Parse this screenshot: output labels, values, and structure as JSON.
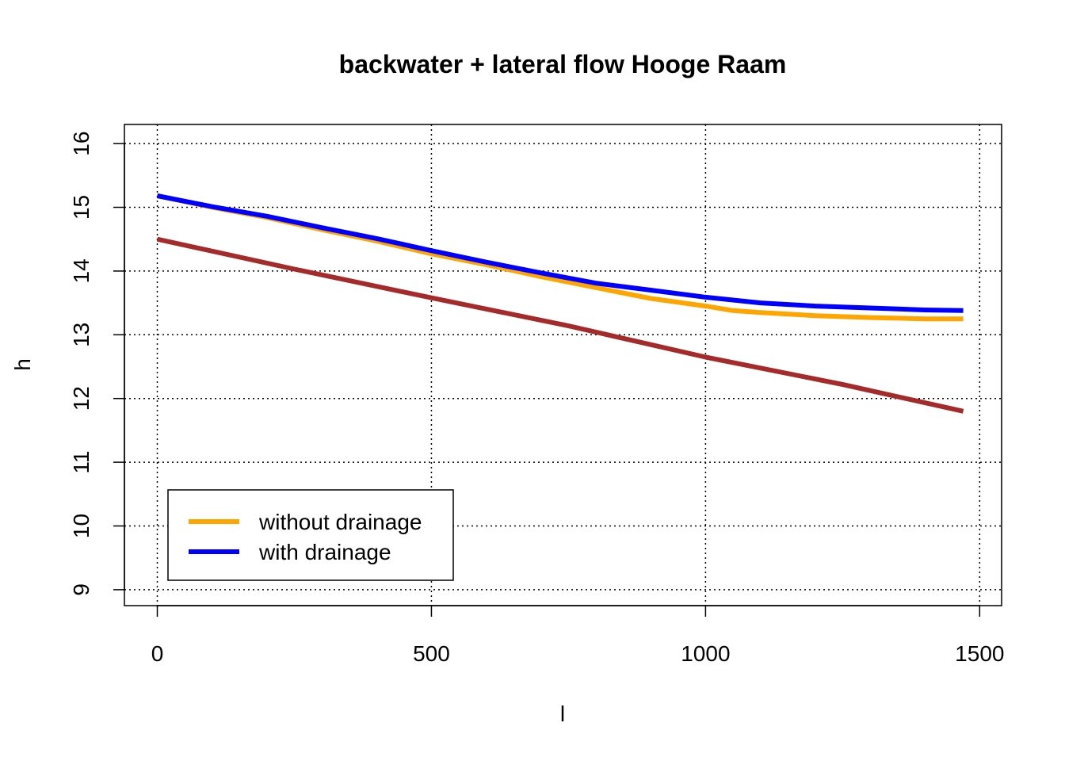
{
  "chart_data": {
    "type": "line",
    "title": "backwater + lateral flow Hooge Raam",
    "xlabel": "l",
    "ylabel": "h",
    "xlim": [
      -60,
      1540
    ],
    "ylim": [
      8.75,
      16.3
    ],
    "x_ticks": [
      0,
      500,
      1000,
      1500
    ],
    "y_ticks": [
      9,
      10,
      11,
      12,
      13,
      14,
      15,
      16
    ],
    "grid": true,
    "legend_position": "bottom-left",
    "series": [
      {
        "name": "without drainage",
        "color": "#FFA500",
        "in_legend": true,
        "x": [
          0,
          100,
          200,
          300,
          400,
          500,
          600,
          700,
          800,
          900,
          1000,
          1050,
          1100,
          1200,
          1300,
          1400,
          1470
        ],
        "y": [
          15.18,
          15.0,
          14.84,
          14.65,
          14.47,
          14.27,
          14.1,
          13.91,
          13.74,
          13.57,
          13.45,
          13.38,
          13.35,
          13.3,
          13.27,
          13.25,
          13.25
        ]
      },
      {
        "name": "with drainage",
        "color": "#0000FF",
        "in_legend": true,
        "x": [
          0,
          100,
          200,
          300,
          400,
          500,
          600,
          700,
          800,
          900,
          1000,
          1100,
          1200,
          1300,
          1400,
          1470
        ],
        "y": [
          15.18,
          15.01,
          14.86,
          14.68,
          14.51,
          14.32,
          14.14,
          13.97,
          13.81,
          13.7,
          13.59,
          13.5,
          13.45,
          13.42,
          13.39,
          13.38
        ]
      },
      {
        "name": "",
        "color": "#A52A2A",
        "in_legend": false,
        "x": [
          0,
          250,
          500,
          750,
          1000,
          1250,
          1470
        ],
        "y": [
          14.5,
          14.03,
          13.58,
          13.14,
          12.65,
          12.22,
          11.8
        ]
      }
    ]
  }
}
